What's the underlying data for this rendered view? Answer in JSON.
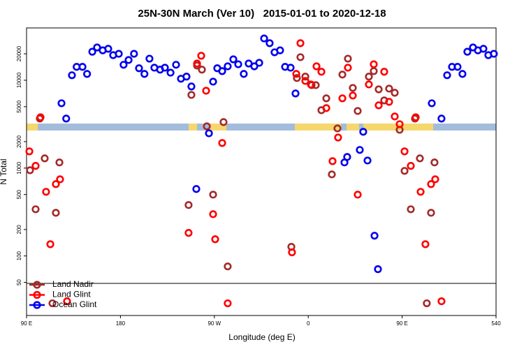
{
  "chart_data": {
    "type": "scatter",
    "title": "25N-30N March (Ver 10)   2015-01-01 to 2020-12-18",
    "x_label": "Longitude (deg E)",
    "y_label": "N Total",
    "xlim": [
      90,
      540
    ],
    "xticks": [
      {
        "value": 90,
        "label": "90 E"
      },
      180,
      {
        "value": 270,
        "label": "90 W"
      },
      {
        "value": 360,
        "label": "0"
      },
      {
        "value": 450,
        "label": "90 E"
      },
      540
    ],
    "ylim": [
      21,
      39400
    ],
    "yticks": [
      50,
      100,
      200,
      500,
      1000,
      2000,
      5000,
      10000,
      20000
    ],
    "y_log": true,
    "legend": "lower left",
    "series": [
      {
        "name": "Land Nadir",
        "color": "#a52a2a",
        "x": [
          93.3,
          98.7,
          102.7,
          107.4,
          114.8,
          118.1,
          121.5,
          245.3,
          248,
          253.4,
          258.1,
          262.8,
          268.8,
          278.8,
          282.8,
          343.8,
          349.1,
          352.5,
          357.2,
          363.2,
          367.2,
          372.6,
          377.3,
          382.6,
          388,
          392.7,
          398,
          402.7,
          407.4,
          418.1,
          422.8,
          427.5,
          432.8,
          437.5,
          442.9,
          447.6,
          452.3,
          458.3,
          462.3,
          467,
          473.6,
          477.7,
          481
        ],
        "values": [
          946,
          340,
          3660,
          1290,
          28.9,
          310,
          1160,
          380,
          6810,
          14700,
          13200,
          2990,
          499,
          3340,
          76,
          127,
          10600,
          18300,
          11000,
          8800,
          8800,
          4560,
          6220,
          848,
          2830,
          11600,
          17600,
          8180,
          4470,
          11000,
          12700,
          7880,
          5890,
          8030,
          7200,
          2730,
          930,
          340,
          3660,
          1290,
          28.9,
          310,
          1160
        ]
      },
      {
        "name": "Land Glint",
        "color": "#ff0000",
        "x": [
          92.7,
          103.4,
          98.7,
          108.7,
          112.8,
          118.1,
          122.1,
          128.8,
          245.3,
          253.4,
          257.4,
          262.1,
          268.8,
          270.8,
          277.5,
          282.8,
          344.4,
          348.5,
          352.5,
          357.2,
          362.5,
          367.9,
          372.6,
          377.3,
          383.3,
          388.6,
          392.7,
          398,
          402.7,
          407.4,
          418.1,
          422.8,
          427.5,
          432.8,
          437.5,
          442.9,
          447.6,
          452.3,
          458.3,
          463,
          467.7,
          472.3,
          477.7,
          481.7,
          487.7
        ],
        "values": [
          1550,
          3790,
          1060,
          537,
          136,
          657,
          746,
          30.5,
          183,
          15500,
          19000,
          7600,
          299,
          155,
          1930,
          28.9,
          110,
          11800,
          26400,
          9820,
          8960,
          14400,
          12500,
          4820,
          1200,
          2230,
          6220,
          13900,
          6690,
          499,
          8960,
          15200,
          5180,
          12500,
          5680,
          3870,
          3160,
          1550,
          1060,
          3790,
          537,
          136,
          657,
          746,
          30.5
        ]
      },
      {
        "name": "Ocean Glint",
        "color": "#0000ee",
        "x": [
          123.5,
          128,
          133.5,
          138,
          143.6,
          148,
          153,
          157.6,
          163,
          168.3,
          173,
          178.4,
          183,
          187.8,
          193,
          197.8,
          203,
          207.8,
          212.5,
          218,
          222.6,
          228,
          233.3,
          238,
          243.3,
          248,
          252.7,
          264.8,
          268.8,
          272.8,
          277.5,
          282.8,
          288.2,
          292.9,
          298.2,
          302.9,
          308.3,
          313,
          317.7,
          323,
          327.7,
          333,
          337.8,
          343.1,
          347.8,
          394.7,
          397.3,
          409.4,
          412.7,
          416.8,
          423.5,
          426.8,
          478.4,
          487.7,
          493.1,
          497.8,
          503.1,
          507.8,
          512.5,
          517.9,
          522.6,
          527.9,
          532.6,
          537.9
        ],
        "values": [
          5470,
          3660,
          11400,
          14200,
          14200,
          11800,
          21100,
          23600,
          21900,
          22800,
          19300,
          20000,
          15000,
          17000,
          20000,
          13700,
          11800,
          17600,
          13900,
          13200,
          13900,
          12200,
          15000,
          10400,
          11000,
          8490,
          578,
          2490,
          9640,
          13700,
          12700,
          14400,
          17300,
          15200,
          11800,
          15500,
          14400,
          15800,
          29900,
          26400,
          20800,
          21900,
          14200,
          13900,
          7070,
          1160,
          1340,
          1610,
          2590,
          1220,
          170,
          70.7,
          5470,
          3660,
          11400,
          14200,
          14200,
          11800,
          21100,
          23600,
          21900,
          22800,
          19300,
          20000
        ]
      }
    ]
  }
}
